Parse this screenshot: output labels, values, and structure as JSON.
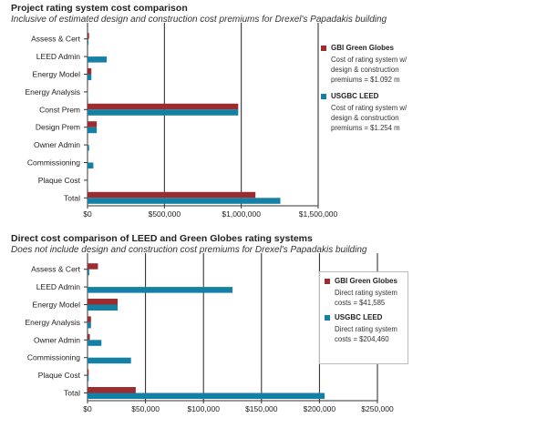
{
  "colors": {
    "gbi": "#9b2d30",
    "leed": "#1580a5",
    "axis": "#333333",
    "grid": "#222222"
  },
  "chart_data": [
    {
      "type": "bar",
      "orientation": "horizontal",
      "title": "Project rating system cost comparison",
      "subtitle": "Inclusive of estimated design and construction cost premiums for Drexel's Papadakis building",
      "categories": [
        "Assess & Cert",
        "LEED Admin",
        "Energy Model",
        "Energy Analysis",
        "Const Prem",
        "Design Prem",
        "Owner Admin",
        "Commissioning",
        "Plaque Cost",
        "Total"
      ],
      "series": [
        {
          "name": "GBI Green Globes",
          "description": "Cost of rating system w/\ndesign & construction\npremiums = $1.092 m",
          "values": [
            10000,
            0,
            25000,
            3000,
            980000,
            60000,
            3000,
            0,
            2000,
            1092000
          ]
        },
        {
          "name": "USGBC LEED",
          "description": "Cost of rating system w/\ndesign & construction\npremiums = $1.254 m",
          "values": [
            6000,
            125000,
            25000,
            3000,
            980000,
            60000,
            10000,
            38000,
            2000,
            1254000
          ]
        }
      ],
      "xlim": [
        0,
        1500000
      ],
      "xticks": [
        0,
        500000,
        1000000,
        1500000
      ],
      "xtick_labels": [
        "$0",
        "$500,000",
        "$1,000,000",
        "$1,500,000"
      ],
      "grid": true,
      "legend_position": "right"
    },
    {
      "type": "bar",
      "orientation": "horizontal",
      "title": "Direct cost comparison of LEED and Green Globes rating systems",
      "subtitle": "Does not include design and construction cost premiums for Drexel's Papadakis building",
      "categories": [
        "Assess & Cert",
        "LEED Admin",
        "Energy Model",
        "Energy Analysis",
        "Owner Admin",
        "Commissioning",
        "Plaque Cost",
        "Total"
      ],
      "series": [
        {
          "name": "GBI Green Globes",
          "description": "Direct rating system\ncosts = $41,585",
          "values": [
            9000,
            0,
            26000,
            3000,
            2000,
            0,
            1000,
            41585
          ]
        },
        {
          "name": "USGBC LEED",
          "description": "Direct rating system\ncosts = $204,460",
          "values": [
            1500,
            125000,
            26000,
            3000,
            12000,
            37500,
            1000,
            204460
          ]
        }
      ],
      "xlim": [
        0,
        250000
      ],
      "xticks": [
        0,
        50000,
        100000,
        150000,
        200000,
        250000
      ],
      "xtick_labels": [
        "$0",
        "$50,000",
        "$100,000",
        "$150,000",
        "$200,000",
        "$250,000"
      ],
      "grid": true,
      "legend_position": "right"
    }
  ]
}
